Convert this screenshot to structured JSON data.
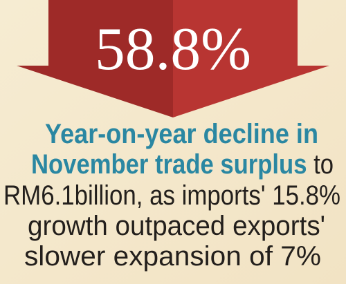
{
  "headline": "58.8%",
  "caption": [
    [
      {
        "text": "Year-on-year decline in",
        "bold": true
      }
    ],
    [
      {
        "text": "November trade surplus",
        "bold": true
      },
      {
        "text": " to",
        "bold": false
      }
    ],
    [
      {
        "text": "RM6.1billion, as imports' 15.8%",
        "bold": false
      }
    ],
    [
      {
        "text": "growth outpaced exports'",
        "bold": false
      }
    ],
    [
      {
        "text": "slower expansion of 7%",
        "bold": false
      }
    ]
  ]
}
